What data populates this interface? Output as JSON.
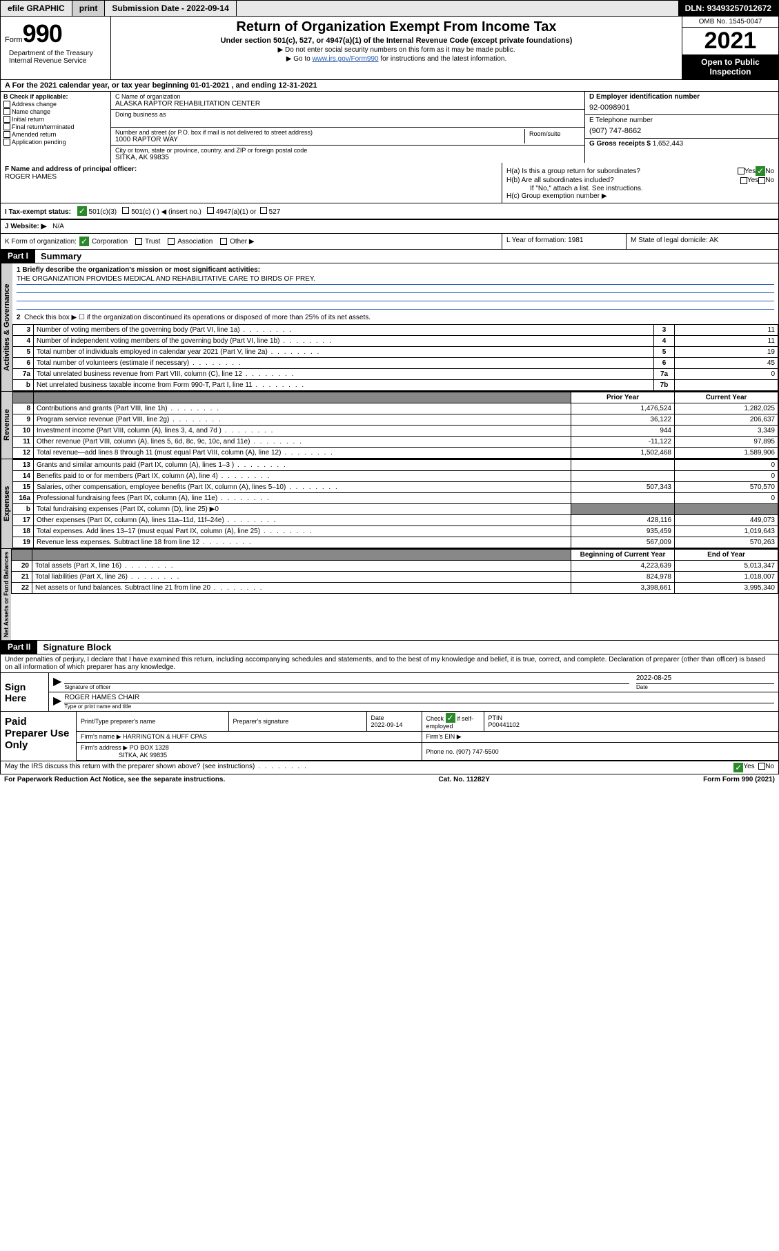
{
  "toolbar": {
    "efile": "efile GRAPHIC",
    "print": "print",
    "submission_label": "Submission Date - ",
    "submission_date": "2022-09-14",
    "dln_label": "DLN: ",
    "dln": "93493257012672"
  },
  "header": {
    "form_label": "Form",
    "form_number": "990",
    "dept": "Department of the Treasury Internal Revenue Service",
    "title": "Return of Organization Exempt From Income Tax",
    "subtitle": "Under section 501(c), 527, or 4947(a)(1) of the Internal Revenue Code (except private foundations)",
    "note1": "▶ Do not enter social security numbers on this form as it may be made public.",
    "note2_pre": "▶ Go to ",
    "note2_link": "www.irs.gov/Form990",
    "note2_post": " for instructions and the latest information.",
    "omb": "OMB No. 1545-0047",
    "year": "2021",
    "inspection": "Open to Public Inspection"
  },
  "line_a": "A For the 2021 calendar year, or tax year beginning 01-01-2021   , and ending 12-31-2021",
  "section_b": {
    "header": "B Check if applicable:",
    "opts": [
      "Address change",
      "Name change",
      "Initial return",
      "Final return/terminated",
      "Amended return",
      "Application pending"
    ],
    "c_label": "C Name of organization",
    "c_name": "ALASKA RAPTOR REHABILITATION CENTER",
    "dba_label": "Doing business as",
    "addr_label": "Number and street (or P.O. box if mail is not delivered to street address)",
    "addr": "1000 RAPTOR WAY",
    "room_label": "Room/suite",
    "city_label": "City or town, state or province, country, and ZIP or foreign postal code",
    "city": "SITKA, AK  99835",
    "d_label": "D Employer identification number",
    "d_ein": "92-0098901",
    "e_label": "E Telephone number",
    "e_phone": "(907) 747-8662",
    "g_label": "G Gross receipts $ ",
    "g_val": "1,652,443"
  },
  "row_fg": {
    "f_label": "F Name and address of principal officer:",
    "f_name": "ROGER HAMES",
    "h_a": "H(a)  Is this a group return for subordinates?",
    "h_b": "H(b)  Are all subordinates included?",
    "h_b_note": "If \"No,\" attach a list. See instructions.",
    "h_c": "H(c)  Group exemption number ▶",
    "yes": "Yes",
    "no": "No"
  },
  "row_ij": {
    "i_label": "I    Tax-exempt status:",
    "i_501c3": "501(c)(3)",
    "i_501c": "501(c) (  ) ◀ (insert no.)",
    "i_4947": "4947(a)(1) or",
    "i_527": "527",
    "j_label": "J   Website: ▶",
    "j_val": "N/A"
  },
  "row_k": {
    "k_label": "K Form of organization:",
    "k_corp": "Corporation",
    "k_trust": "Trust",
    "k_assoc": "Association",
    "k_other": "Other ▶",
    "l_label": "L Year of formation: ",
    "l_val": "1981",
    "m_label": "M State of legal domicile: ",
    "m_val": "AK"
  },
  "part1": {
    "header": "Part I",
    "title": "Summary",
    "mission_label": "1   Briefly describe the organization's mission or most significant activities:",
    "mission": "THE ORGANIZATION PROVIDES MEDICAL AND REHABILITATIVE CARE TO BIRDS OF PREY.",
    "line2": "Check this box ▶ ☐  if the organization discontinued its operations or disposed of more than 25% of its net assets.",
    "vert_labels": [
      "Activities & Governance",
      "Revenue",
      "Expenses",
      "Net Assets or Fund Balances"
    ],
    "rows_gov": [
      {
        "n": "3",
        "l": "Number of voting members of the governing body (Part VI, line 1a)",
        "box": "3",
        "v": "11"
      },
      {
        "n": "4",
        "l": "Number of independent voting members of the governing body (Part VI, line 1b)",
        "box": "4",
        "v": "11"
      },
      {
        "n": "5",
        "l": "Total number of individuals employed in calendar year 2021 (Part V, line 2a)",
        "box": "5",
        "v": "19"
      },
      {
        "n": "6",
        "l": "Total number of volunteers (estimate if necessary)",
        "box": "6",
        "v": "45"
      },
      {
        "n": "7a",
        "l": "Total unrelated business revenue from Part VIII, column (C), line 12",
        "box": "7a",
        "v": "0"
      },
      {
        "n": "b",
        "l": "Net unrelated business taxable income from Form 990-T, Part I, line 11",
        "box": "7b",
        "v": ""
      }
    ],
    "col_prior": "Prior Year",
    "col_current": "Current Year",
    "rows_rev": [
      {
        "n": "8",
        "l": "Contributions and grants (Part VIII, line 1h)",
        "p": "1,476,524",
        "c": "1,282,025"
      },
      {
        "n": "9",
        "l": "Program service revenue (Part VIII, line 2g)",
        "p": "36,122",
        "c": "206,637"
      },
      {
        "n": "10",
        "l": "Investment income (Part VIII, column (A), lines 3, 4, and 7d )",
        "p": "944",
        "c": "3,349"
      },
      {
        "n": "11",
        "l": "Other revenue (Part VIII, column (A), lines 5, 6d, 8c, 9c, 10c, and 11e)",
        "p": "-11,122",
        "c": "97,895"
      },
      {
        "n": "12",
        "l": "Total revenue—add lines 8 through 11 (must equal Part VIII, column (A), line 12)",
        "p": "1,502,468",
        "c": "1,589,906"
      }
    ],
    "rows_exp": [
      {
        "n": "13",
        "l": "Grants and similar amounts paid (Part IX, column (A), lines 1–3 )",
        "p": "",
        "c": "0"
      },
      {
        "n": "14",
        "l": "Benefits paid to or for members (Part IX, column (A), line 4)",
        "p": "",
        "c": "0"
      },
      {
        "n": "15",
        "l": "Salaries, other compensation, employee benefits (Part IX, column (A), lines 5–10)",
        "p": "507,343",
        "c": "570,570"
      },
      {
        "n": "16a",
        "l": "Professional fundraising fees (Part IX, column (A), line 11e)",
        "p": "",
        "c": "0"
      },
      {
        "n": "b",
        "l": "Total fundraising expenses (Part IX, column (D), line 25) ▶0",
        "p": null,
        "c": null
      },
      {
        "n": "17",
        "l": "Other expenses (Part IX, column (A), lines 11a–11d, 11f–24e)",
        "p": "428,116",
        "c": "449,073"
      },
      {
        "n": "18",
        "l": "Total expenses. Add lines 13–17 (must equal Part IX, column (A), line 25)",
        "p": "935,459",
        "c": "1,019,643"
      },
      {
        "n": "19",
        "l": "Revenue less expenses. Subtract line 18 from line 12",
        "p": "567,009",
        "c": "570,263"
      }
    ],
    "col_begin": "Beginning of Current Year",
    "col_end": "End of Year",
    "rows_net": [
      {
        "n": "20",
        "l": "Total assets (Part X, line 16)",
        "p": "4,223,639",
        "c": "5,013,347"
      },
      {
        "n": "21",
        "l": "Total liabilities (Part X, line 26)",
        "p": "824,978",
        "c": "1,018,007"
      },
      {
        "n": "22",
        "l": "Net assets or fund balances. Subtract line 21 from line 20",
        "p": "3,398,661",
        "c": "3,995,340"
      }
    ]
  },
  "part2": {
    "header": "Part II",
    "title": "Signature Block",
    "decl": "Under penalties of perjury, I declare that I have examined this return, including accompanying schedules and statements, and to the best of my knowledge and belief, it is true, correct, and complete. Declaration of preparer (other than officer) is based on all information of which preparer has any knowledge.",
    "sign_here": "Sign Here",
    "sig_officer": "Signature of officer",
    "sig_date": "Date",
    "sig_date_val": "2022-08-25",
    "sig_name": "ROGER HAMES CHAIR",
    "sig_name_label": "Type or print name and title",
    "paid": "Paid Preparer Use Only",
    "prep_name_label": "Print/Type preparer's name",
    "prep_sig_label": "Preparer's signature",
    "prep_date_label": "Date",
    "prep_date": "2022-09-14",
    "prep_check": "Check ☑ if self-employed",
    "prep_ptin_label": "PTIN",
    "prep_ptin": "P00441102",
    "firm_name_label": "Firm's name   ▶",
    "firm_name": "HARRINGTON & HUFF CPAS",
    "firm_ein_label": "Firm's EIN ▶",
    "firm_addr_label": "Firm's address ▶",
    "firm_addr1": "PO BOX 1328",
    "firm_addr2": "SITKA, AK  99835",
    "firm_phone_label": "Phone no. ",
    "firm_phone": "(907) 747-5500",
    "may_irs": "May the IRS discuss this return with the preparer shown above? (see instructions)",
    "yes": "Yes",
    "no": "No"
  },
  "footer": {
    "paperwork": "For Paperwork Reduction Act Notice, see the separate instructions.",
    "cat": "Cat. No. 11282Y",
    "form": "Form 990 (2021)"
  }
}
